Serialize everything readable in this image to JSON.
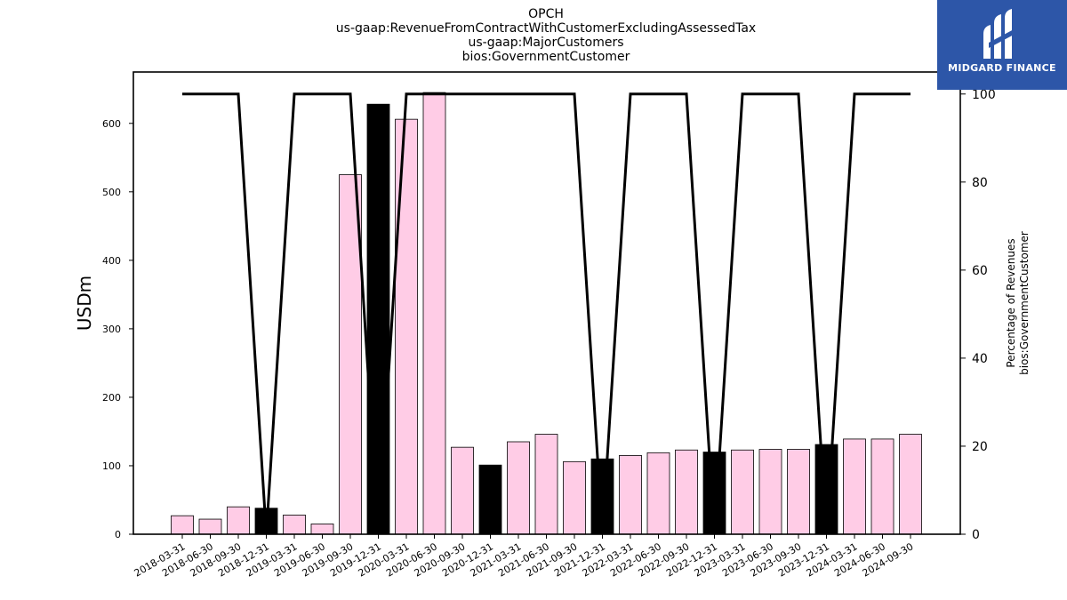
{
  "chart_data": {
    "type": "bar",
    "title_lines": [
      "OPCH",
      "us-gaap:RevenueFromContractWithCustomerExcludingAssessedTax",
      "us-gaap:MajorCustomers",
      "bios:GovernmentCustomer"
    ],
    "ylabel": "USDm",
    "y2label_lines": [
      "Percentage of Revenues",
      "bios:GovernmentCustomer"
    ],
    "ylim": [
      0,
      675
    ],
    "y2lim": [
      0,
      105
    ],
    "yticks": [
      0,
      100,
      200,
      300,
      400,
      500,
      600
    ],
    "y2ticks": [
      0,
      20,
      40,
      60,
      80,
      100
    ],
    "categories": [
      "2018-03-31",
      "2018-06-30",
      "2018-09-30",
      "2018-12-31",
      "2019-03-31",
      "2019-06-30",
      "2019-09-30",
      "2019-12-31",
      "2020-03-31",
      "2020-06-30",
      "2020-09-30",
      "2020-12-31",
      "2021-03-31",
      "2021-06-30",
      "2021-09-30",
      "2021-12-31",
      "2022-03-31",
      "2022-06-30",
      "2022-09-30",
      "2022-12-31",
      "2023-03-31",
      "2023-06-30",
      "2023-09-30",
      "2023-12-31",
      "2024-03-31",
      "2024-06-30",
      "2024-09-30"
    ],
    "series": [
      {
        "type": "bar",
        "values": [
          27,
          22,
          40,
          38,
          28,
          15,
          525,
          628,
          606,
          645,
          127,
          101,
          135,
          146,
          106,
          110,
          115,
          119,
          123,
          120,
          123,
          124,
          124,
          131,
          139,
          139,
          146
        ],
        "year_end_quarter": [
          false,
          false,
          false,
          true,
          false,
          false,
          false,
          true,
          false,
          false,
          false,
          true,
          false,
          false,
          false,
          true,
          false,
          false,
          false,
          true,
          false,
          false,
          false,
          true,
          false,
          false,
          false
        ]
      },
      {
        "type": "line",
        "axis": "right",
        "values": [
          100,
          100,
          100,
          0,
          100,
          100,
          100,
          0,
          100,
          100,
          100,
          100,
          100,
          100,
          100,
          0,
          100,
          100,
          100,
          0,
          100,
          100,
          100,
          0,
          100,
          100,
          100
        ]
      }
    ],
    "colors": {
      "bar_quarter": "#ffccE6",
      "bar_year_end": "#000000",
      "bar_edge": "#000000",
      "line": "#000000"
    }
  },
  "logo": {
    "text": "MIDGARD FINANCE",
    "background": "#2d56a8"
  }
}
